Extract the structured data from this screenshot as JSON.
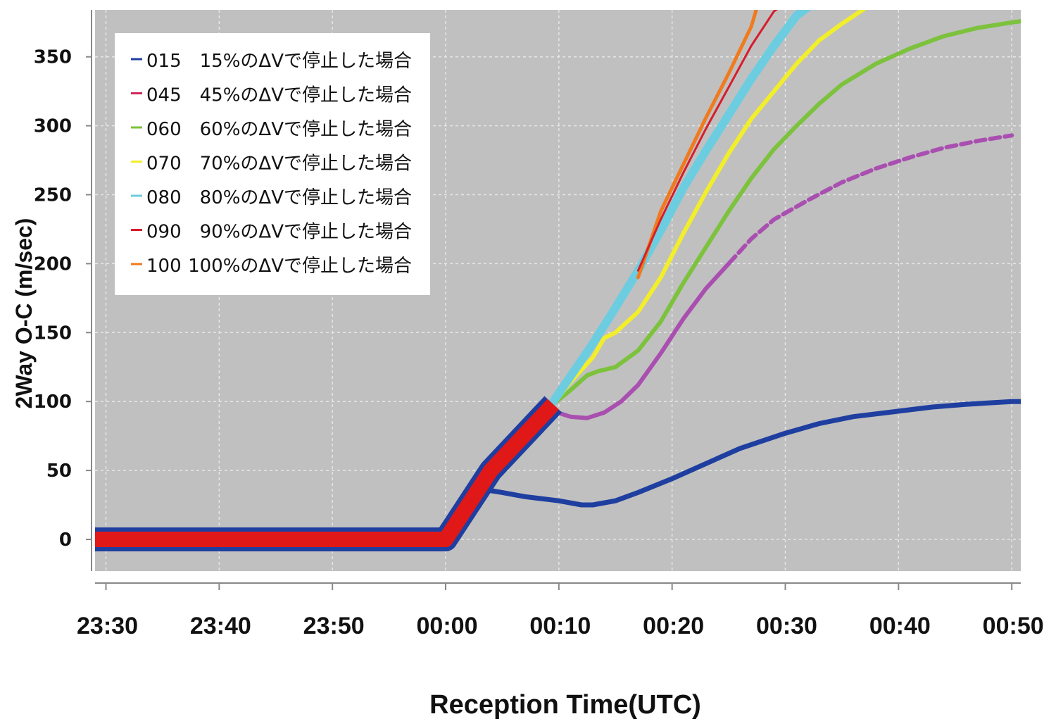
{
  "chart_data": {
    "type": "line",
    "title": "",
    "xlabel": "Reception Time(UTC)",
    "ylabel": "2Way O-C (m/sec)",
    "x_tick_labels": [
      "23:30",
      "23:40",
      "23:50",
      "00:00",
      "00:10",
      "00:20",
      "00:30",
      "00:40",
      "00:50"
    ],
    "y_tick_labels": [
      "0",
      "50",
      "100",
      "150",
      "200",
      "250",
      "300",
      "350"
    ],
    "x_unit": "minutes relative to 00:00 UTC",
    "xlim": [
      -31,
      51
    ],
    "ylim": [
      -25,
      385
    ],
    "grid": true,
    "grid_style": "dashed white",
    "plot_background": "#c0c0c0",
    "legend_position": "top-left",
    "legend": [
      {
        "code": "015",
        "label": "15%のΔVで停止した場合",
        "color": "#1f3fa0"
      },
      {
        "code": "045",
        "label": "45%のΔVで停止した場合",
        "color": "#d0285a"
      },
      {
        "code": "060",
        "label": "60%のΔVで停止した場合",
        "color": "#7cc23c"
      },
      {
        "code": "070",
        "label": "70%のΔVで停止した場合",
        "color": "#f2ee2a"
      },
      {
        "code": "080",
        "label": "80%のΔVで停止した場合",
        "color": "#6ccde0"
      },
      {
        "code": "090",
        "label": "90%のΔVで停止した場合",
        "color": "#d81c2a"
      },
      {
        "code": "100",
        "label": "100%のΔVで停止した場合",
        "color": "#f07a1e"
      }
    ],
    "series": [
      {
        "name": "015",
        "color": "#1f3fa0",
        "width": 7,
        "x": [
          3.5,
          5,
          7,
          9,
          10,
          12,
          13,
          15,
          17,
          20,
          23,
          26,
          30,
          33,
          36,
          40,
          43,
          46,
          50,
          51
        ],
        "y": [
          36,
          34,
          31,
          29,
          28,
          25,
          25,
          28,
          34,
          44,
          55,
          66,
          77,
          84,
          89,
          93,
          96,
          98,
          100,
          100
        ]
      },
      {
        "name": "045",
        "color": "#a94fb0",
        "width": 6,
        "x": [
          9.5,
          11,
          12.5,
          14,
          15.5,
          17,
          19,
          21,
          23,
          25
        ],
        "y": [
          93,
          89,
          88,
          92,
          100,
          112,
          135,
          160,
          182,
          200
        ]
      },
      {
        "name": "045",
        "color": "#a94fb0",
        "width": 6,
        "dashed": true,
        "x": [
          25,
          27,
          29,
          32,
          35,
          38,
          41,
          44,
          47,
          50
        ],
        "y": [
          200,
          218,
          232,
          246,
          259,
          269,
          277,
          284,
          289,
          293
        ]
      },
      {
        "name": "060",
        "color": "#7cc23c",
        "width": 6,
        "x": [
          9.5,
          11,
          12.5,
          13.5,
          15,
          17,
          19,
          21,
          23,
          25,
          27,
          29,
          31,
          33,
          35,
          38,
          41,
          44,
          47,
          50,
          51
        ],
        "y": [
          98,
          108,
          119,
          122,
          125,
          137,
          158,
          186,
          212,
          238,
          262,
          283,
          300,
          316,
          330,
          345,
          356,
          365,
          371,
          375,
          376
        ]
      },
      {
        "name": "070",
        "color": "#f2ee2a",
        "width": 6,
        "x": [
          9.5,
          11,
          13,
          14,
          15,
          17,
          19,
          21,
          23,
          25,
          27,
          29,
          31,
          33,
          35,
          37
        ],
        "y": [
          98,
          114,
          132,
          146,
          150,
          165,
          190,
          222,
          252,
          280,
          305,
          325,
          345,
          362,
          374,
          385
        ]
      },
      {
        "name": "080",
        "color": "#6ccde0",
        "width": 12,
        "x": [
          9.5,
          11,
          13,
          15,
          17,
          19,
          21,
          23,
          25,
          27,
          29,
          31,
          32
        ],
        "y": [
          100,
          118,
          142,
          168,
          195,
          224,
          255,
          282,
          308,
          334,
          358,
          380,
          386
        ]
      },
      {
        "name": "090",
        "color": "#d81c2a",
        "width": 3,
        "x": [
          17,
          19,
          21,
          23,
          25,
          27,
          29,
          29.5
        ],
        "y": [
          195,
          232,
          266,
          298,
          328,
          358,
          383,
          386
        ]
      },
      {
        "name": "100",
        "color": "#f07a1e",
        "width": 5,
        "x": [
          17,
          19,
          21,
          23,
          25,
          27,
          27.5
        ],
        "y": [
          190,
          238,
          272,
          306,
          338,
          372,
          386
        ]
      }
    ],
    "shared_segment": {
      "x": [
        -31,
        0,
        4,
        9.5
      ],
      "y": [
        0,
        0,
        50,
        98
      ],
      "outline_color": "#1f3fa0",
      "fill_color": "#e01818"
    }
  }
}
